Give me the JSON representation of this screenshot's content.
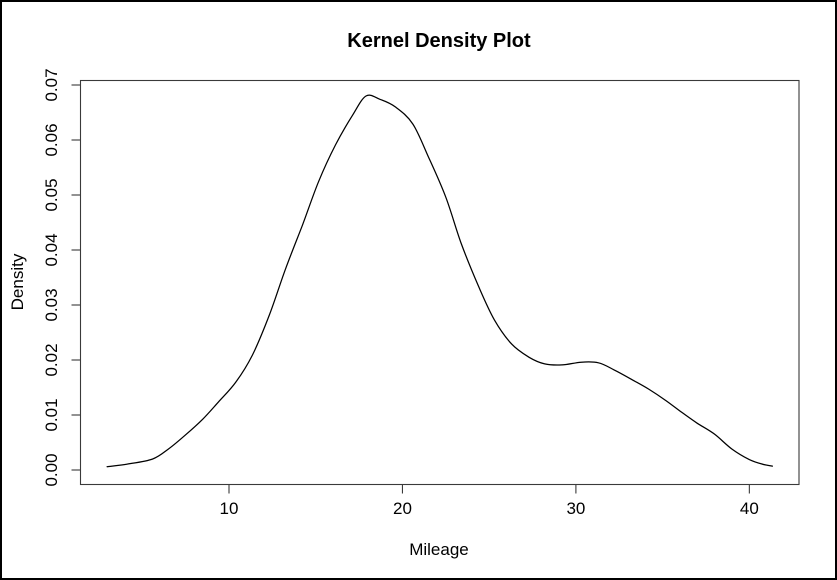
{
  "frame": {
    "background": "#ffffff",
    "border_color": "#000000"
  },
  "chart_data": {
    "type": "line",
    "title": "Kernel Density Plot",
    "xlabel": "Mileage",
    "ylabel": "Density",
    "x_ticks": [
      "10",
      "20",
      "30",
      "40"
    ],
    "y_ticks": [
      "0.00",
      "0.01",
      "0.02",
      "0.03",
      "0.04",
      "0.05",
      "0.06",
      "0.07"
    ],
    "xlim": [
      1.4,
      42.9
    ],
    "ylim": [
      0,
      0.0706
    ],
    "grid": false,
    "legend_position": "none",
    "line_color": "#000000",
    "axis_color": "#333333",
    "series": [
      {
        "name": "kernel-density",
        "points": [
          [
            2.97,
            0.0006
          ],
          [
            4.2,
            0.0011
          ],
          [
            5.6,
            0.002
          ],
          [
            6.5,
            0.0038
          ],
          [
            7.5,
            0.0064
          ],
          [
            8.5,
            0.0093
          ],
          [
            9.4,
            0.0124
          ],
          [
            10.4,
            0.016
          ],
          [
            11.35,
            0.0209
          ],
          [
            12.33,
            0.0282
          ],
          [
            13.25,
            0.0365
          ],
          [
            14.23,
            0.0445
          ],
          [
            15.16,
            0.0524
          ],
          [
            16.14,
            0.0591
          ],
          [
            17.12,
            0.0645
          ],
          [
            17.9,
            0.068
          ],
          [
            18.7,
            0.0674
          ],
          [
            19.6,
            0.066
          ],
          [
            20.6,
            0.0629
          ],
          [
            21.5,
            0.0569
          ],
          [
            22.5,
            0.0496
          ],
          [
            23.4,
            0.0411
          ],
          [
            24.4,
            0.0333
          ],
          [
            25.3,
            0.0273
          ],
          [
            26.3,
            0.0229
          ],
          [
            27.3,
            0.0205
          ],
          [
            28.2,
            0.0193
          ],
          [
            29.2,
            0.0191
          ],
          [
            30.3,
            0.0196
          ],
          [
            31.3,
            0.0195
          ],
          [
            32.2,
            0.0182
          ],
          [
            33.2,
            0.0165
          ],
          [
            34.2,
            0.0147
          ],
          [
            35.2,
            0.0126
          ],
          [
            36.1,
            0.0105
          ],
          [
            37.0,
            0.0085
          ],
          [
            38.0,
            0.0065
          ],
          [
            39.0,
            0.0038
          ],
          [
            40.0,
            0.0019
          ],
          [
            40.7,
            0.0011
          ],
          [
            41.33,
            0.0007
          ]
        ]
      }
    ]
  }
}
